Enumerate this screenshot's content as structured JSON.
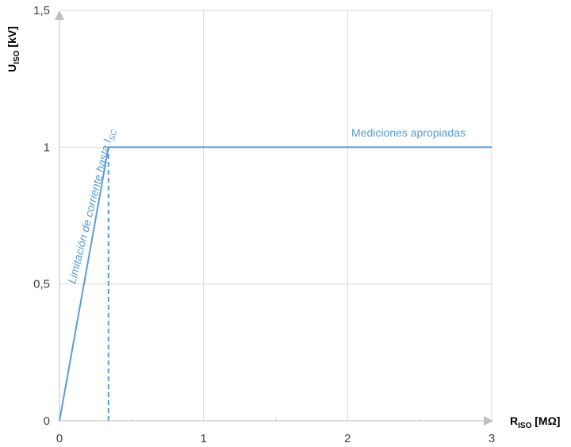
{
  "chart_data": {
    "type": "line",
    "x_axis": {
      "label_main": "R",
      "label_sub": "ISO",
      "label_unit": " [MΩ]",
      "range": [
        0,
        3
      ],
      "ticks": [
        0,
        1,
        2,
        3
      ],
      "tick_labels": [
        "0",
        "1",
        "2",
        "3"
      ]
    },
    "y_axis": {
      "label_main": "U",
      "label_sub": "ISO",
      "label_unit": " [kV]",
      "range": [
        0,
        1.5
      ],
      "ticks": [
        0,
        0.5,
        1,
        1.5
      ],
      "tick_labels": [
        "0",
        "0,5",
        "1",
        "1,5"
      ]
    },
    "grid": true,
    "series": [
      {
        "points": [
          [
            0,
            0
          ],
          [
            0.34,
            1
          ],
          [
            3,
            1
          ]
        ],
        "color": "#5b9bd5"
      }
    ],
    "dashed_marker": {
      "x": 0.34,
      "y_from": 0,
      "y_to": 1,
      "color": "#5b9bd5"
    },
    "annotations": {
      "limit_text_main": "Limitación de corriente hasta I",
      "limit_text_sub": "SC",
      "good_text": "Mediciones apropiadas"
    },
    "colors": {
      "series": "#5b9bd5",
      "grid": "#d9d9d9",
      "axis": "#bfbfbf"
    }
  }
}
